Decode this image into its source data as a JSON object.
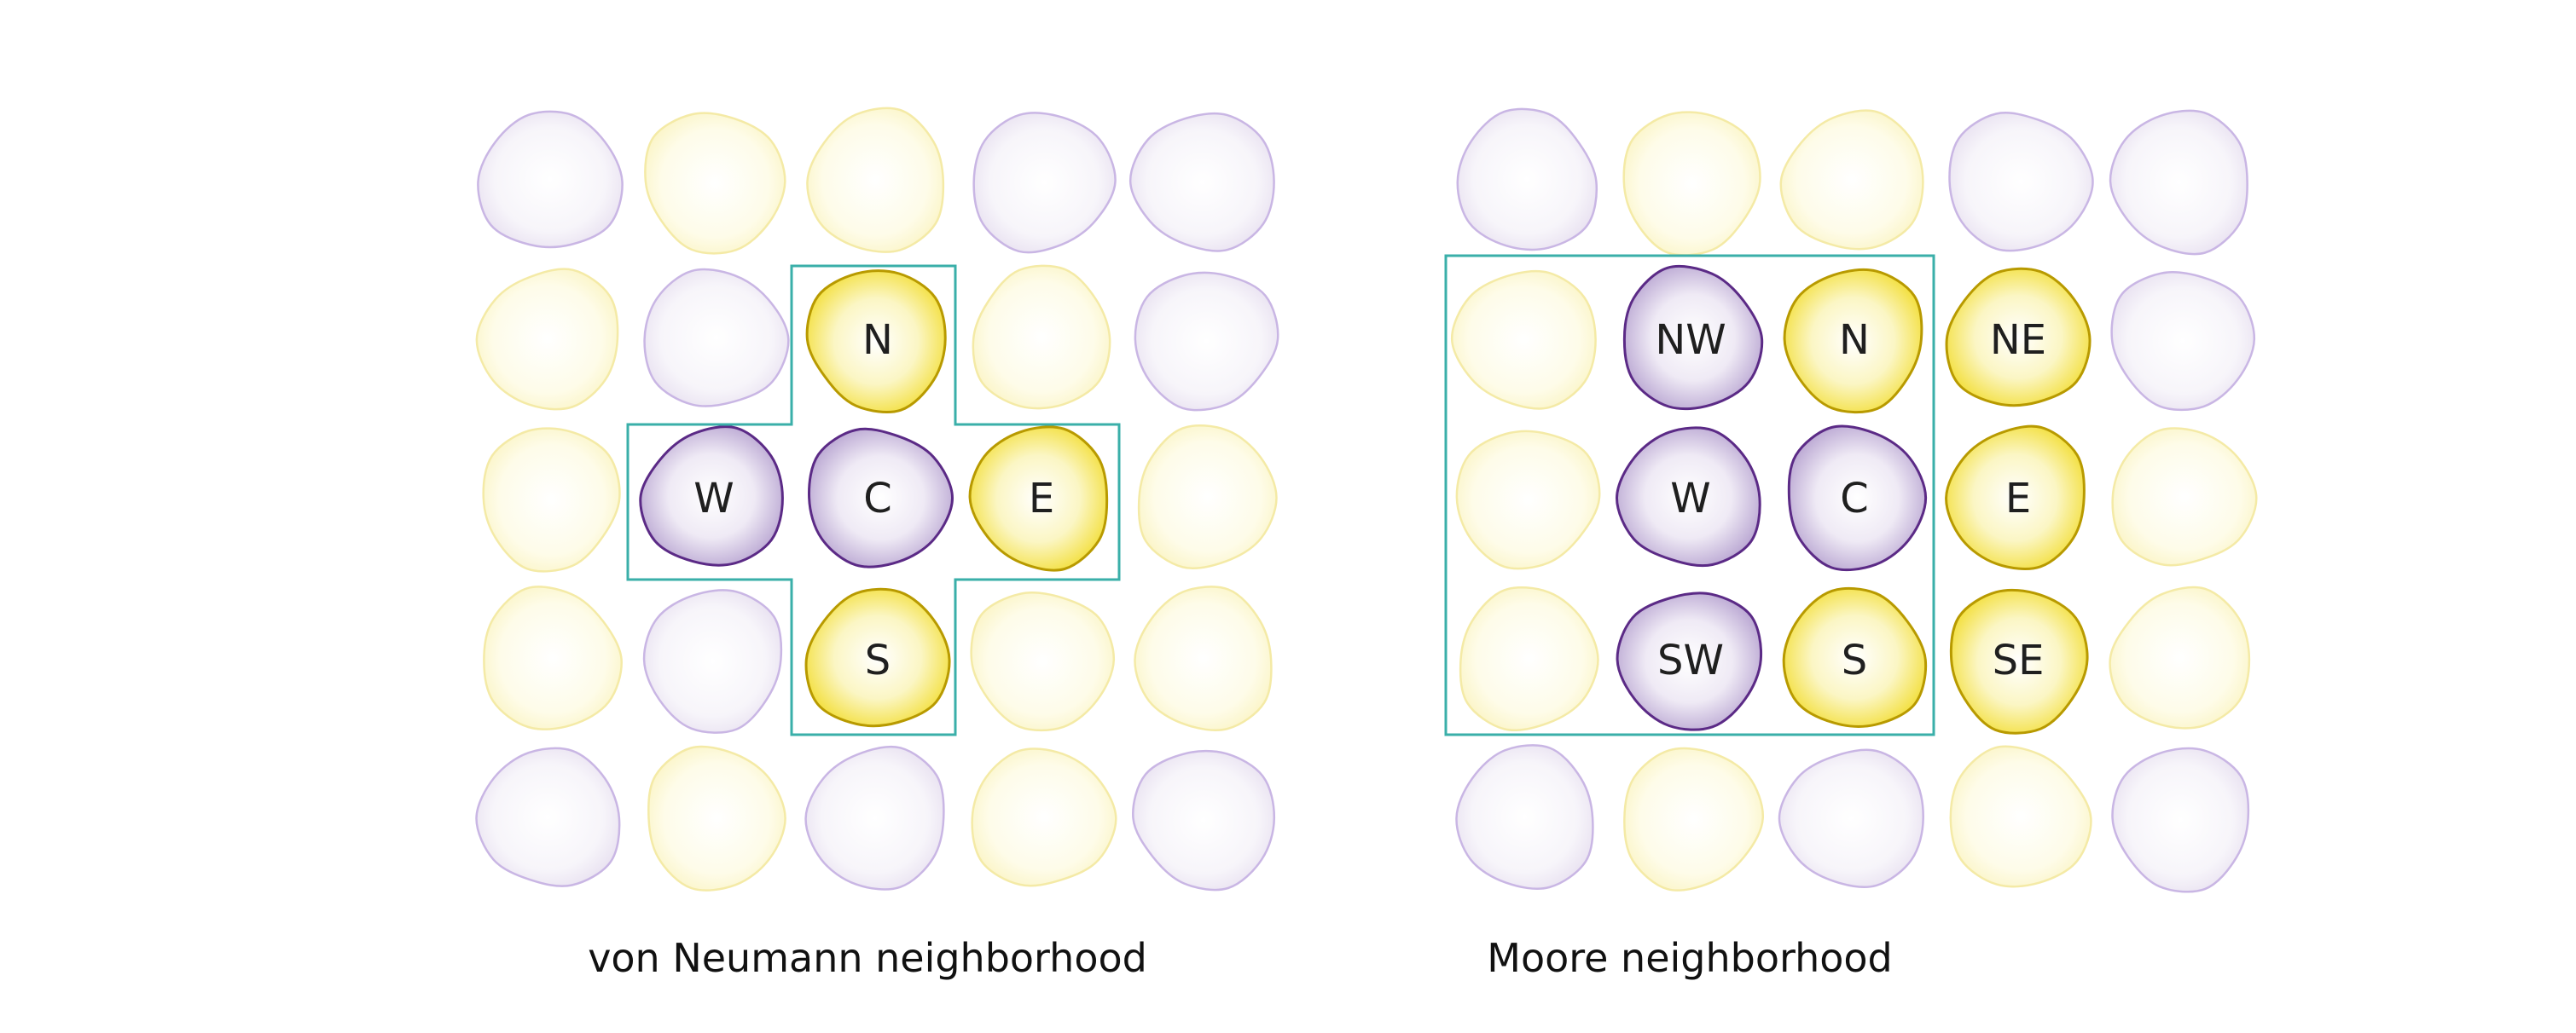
{
  "colors": {
    "purple_stroke": "#5b2a86",
    "purple_faded_stroke": "#c9b6e4",
    "purple_fill": "#cbbcdc",
    "yellow_stroke": "#b89a00",
    "yellow_faded_stroke": "#f4eaa6",
    "yellow_fill": "#f6e64a",
    "outline": "#3aafa9"
  },
  "panels": [
    {
      "name": "von-neumann",
      "caption": "von Neumann neighborhood",
      "grid": [
        [
          "purple",
          "yellow",
          "yellow",
          "purple",
          "purple"
        ],
        [
          "yellow",
          "purple",
          "yellow",
          "yellow",
          "purple"
        ],
        [
          "yellow",
          "purple",
          "purple",
          "yellow",
          "yellow"
        ],
        [
          "yellow",
          "purple",
          "yellow",
          "yellow",
          "yellow"
        ],
        [
          "purple",
          "yellow",
          "purple",
          "yellow",
          "purple"
        ]
      ],
      "highlighted": [
        {
          "row": 1,
          "col": 2,
          "label": "N"
        },
        {
          "row": 2,
          "col": 1,
          "label": "W"
        },
        {
          "row": 2,
          "col": 2,
          "label": "C"
        },
        {
          "row": 2,
          "col": 3,
          "label": "E"
        },
        {
          "row": 3,
          "col": 2,
          "label": "S"
        }
      ]
    },
    {
      "name": "moore",
      "caption": "Moore neighborhood",
      "grid": [
        [
          "purple",
          "yellow",
          "yellow",
          "purple",
          "purple"
        ],
        [
          "yellow",
          "purple",
          "yellow",
          "yellow",
          "purple"
        ],
        [
          "yellow",
          "purple",
          "purple",
          "yellow",
          "yellow"
        ],
        [
          "yellow",
          "purple",
          "yellow",
          "yellow",
          "yellow"
        ],
        [
          "purple",
          "yellow",
          "purple",
          "yellow",
          "purple"
        ]
      ],
      "highlighted": [
        {
          "row": 1,
          "col": 1,
          "label": "NW"
        },
        {
          "row": 1,
          "col": 2,
          "label": "N"
        },
        {
          "row": 1,
          "col": 3,
          "label": "NE"
        },
        {
          "row": 2,
          "col": 1,
          "label": "W"
        },
        {
          "row": 2,
          "col": 2,
          "label": "C"
        },
        {
          "row": 2,
          "col": 3,
          "label": "E"
        },
        {
          "row": 3,
          "col": 1,
          "label": "SW"
        },
        {
          "row": 3,
          "col": 2,
          "label": "S"
        },
        {
          "row": 3,
          "col": 3,
          "label": "SE"
        }
      ]
    }
  ]
}
